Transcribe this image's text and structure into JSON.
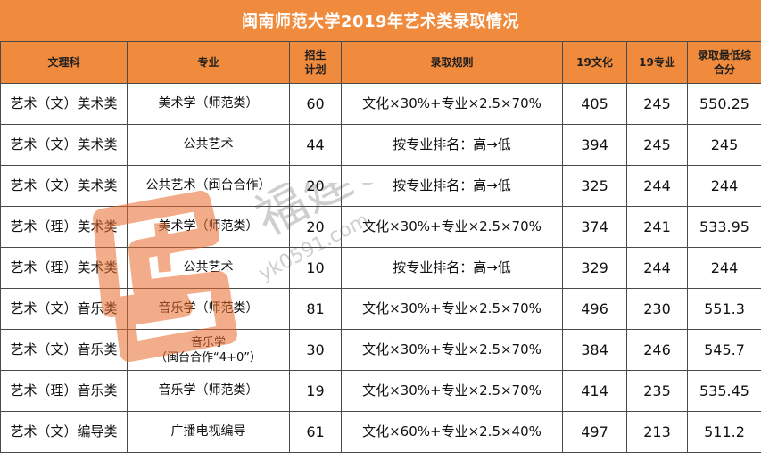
{
  "title": "闽南师范大学2019年艺术类录取情况",
  "columns": [
    "文理科",
    "专业",
    "招生\n计划",
    "录取规则",
    "19文化",
    "19专业",
    "录取最低综\n合分"
  ],
  "rows": [
    [
      "艺术（文）美术类",
      "美术学（师范类）",
      "60",
      "文化×30%+专业×2.5×70%",
      "405",
      "245",
      "550.25"
    ],
    [
      "艺术（文）美术类",
      "公共艺术",
      "44",
      "按专业排名：高→低",
      "394",
      "245",
      "245"
    ],
    [
      "艺术（文）美术类",
      "公共艺术（闽台合作）",
      "20",
      "按专业排名：高→低",
      "325",
      "244",
      "244"
    ],
    [
      "艺术（理）美术类",
      "美术学（师范类）",
      "20",
      "文化×30%+专业×2.5×70%",
      "374",
      "241",
      "533.95"
    ],
    [
      "艺术（理）美术类",
      "公共艺术",
      "10",
      "按专业排名：高→低",
      "329",
      "244",
      "244"
    ],
    [
      "艺术（文）音乐类",
      "音乐学（师范类）",
      "81",
      "文化×30%+专业×2.5×70%",
      "496",
      "230",
      "551.3"
    ],
    [
      "艺术（文）音乐类",
      "音乐学\n（闽台合作“4+0”）",
      "30",
      "文化×30%+专业×2.5×70%",
      "384",
      "246",
      "545.7"
    ],
    [
      "艺术（理）音乐类",
      "音乐学（师范类）",
      "19",
      "文化×30%+专业×2.5×70%",
      "414",
      "235",
      "535.45"
    ],
    [
      "艺术（文）编导类",
      "广播电视编导",
      "61",
      "文化×60%+专业×2.5×40%",
      "497",
      "213",
      "511.2"
    ]
  ],
  "watermark": {
    "text": "福建艺考网",
    "url": "yk0591.com",
    "color": "#e05a1e"
  }
}
